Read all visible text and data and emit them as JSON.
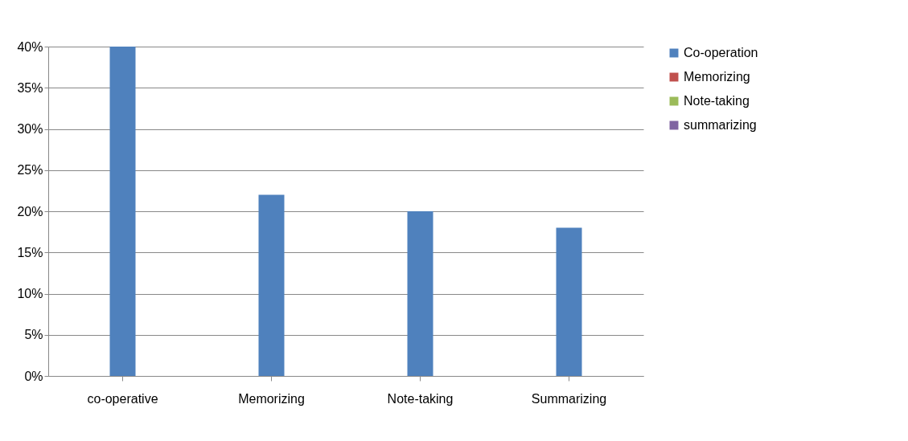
{
  "chart_data": {
    "type": "bar",
    "categories": [
      "co-operative",
      "Memorizing",
      "Note-taking",
      "Summarizing"
    ],
    "series": [
      {
        "name": "Co-operation",
        "color": "#4f81bd",
        "values": [
          40,
          22,
          20,
          18
        ]
      },
      {
        "name": "Memorizing",
        "color": "#c0504d",
        "values": [
          null,
          null,
          null,
          null
        ]
      },
      {
        "name": "Note-taking",
        "color": "#9bbb59",
        "values": [
          null,
          null,
          null,
          null
        ]
      },
      {
        "name": "summarizing",
        "color": "#8064a2",
        "values": [
          null,
          null,
          null,
          null
        ]
      }
    ],
    "ylim": [
      0,
      40
    ],
    "yticks": [
      {
        "value": 0,
        "label": "0%"
      },
      {
        "value": 5,
        "label": "5%"
      },
      {
        "value": 10,
        "label": "10%"
      },
      {
        "value": 15,
        "label": "15%"
      },
      {
        "value": 20,
        "label": "20%"
      },
      {
        "value": 25,
        "label": "25%"
      },
      {
        "value": 30,
        "label": "30%"
      },
      {
        "value": 35,
        "label": "35%"
      },
      {
        "value": 40,
        "label": "40%"
      }
    ],
    "grid": "y",
    "legend": "right"
  }
}
